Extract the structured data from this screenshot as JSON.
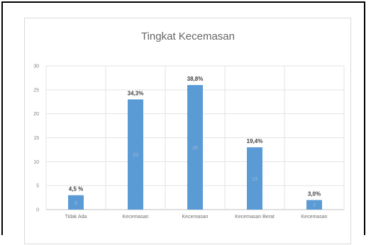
{
  "chart_data": {
    "type": "bar",
    "title": "Tingkat Kecemasan",
    "xlabel": "",
    "ylabel": "",
    "ylim": [
      0,
      30
    ],
    "yticks": [
      0,
      5,
      10,
      15,
      20,
      25,
      30
    ],
    "grid": true,
    "legend": "none",
    "bar_color": "#5b9bd5",
    "categories": [
      "Tidak Ada",
      "Kecemasan",
      "Kecemasan",
      "Kecemasan Berat",
      "Kecemasan"
    ],
    "values": [
      3,
      23,
      26,
      13,
      2
    ],
    "value_labels": [
      "3",
      "23",
      "26",
      "13",
      "2"
    ],
    "percent_labels": [
      "4,5 %",
      "34,3%",
      "38,8%",
      "19,4%",
      "3,0%"
    ]
  }
}
